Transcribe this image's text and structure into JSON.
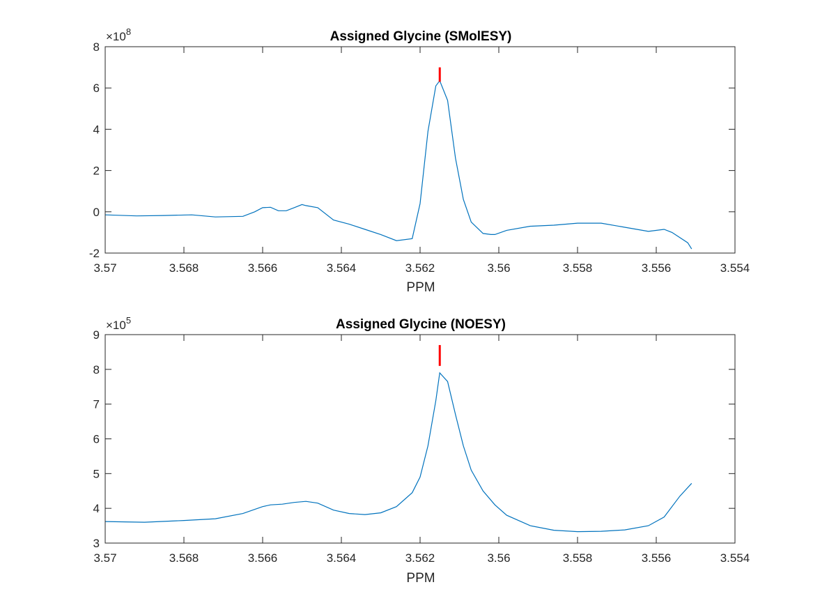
{
  "chart_data": [
    {
      "type": "line",
      "title": "Assigned Glycine (SMolESY)",
      "xlabel": "PPM",
      "ylabel": "",
      "x_reversed": true,
      "xlim": [
        3.554,
        3.57
      ],
      "ylim": [
        -2,
        8
      ],
      "x_ticks": [
        "3.57",
        "3.568",
        "3.566",
        "3.564",
        "3.562",
        "3.56",
        "3.558",
        "3.556",
        "3.554"
      ],
      "x_tick_values": [
        3.57,
        3.568,
        3.566,
        3.564,
        3.562,
        3.56,
        3.558,
        3.556,
        3.554
      ],
      "y_ticks": [
        "-2",
        "0",
        "2",
        "4",
        "6",
        "8"
      ],
      "y_tick_values": [
        -2,
        0,
        2,
        4,
        6,
        8
      ],
      "y_exponent_base": "×10",
      "y_exponent": "8",
      "series_color": "#0072bd",
      "marker_color": "#ff0000",
      "marker": {
        "x": 3.5615,
        "y_from": 6.3,
        "y_to": 7.0
      },
      "series": [
        {
          "x": [
            3.57,
            3.5692,
            3.5685,
            3.5678,
            3.5672,
            3.5665,
            3.5662,
            3.566,
            3.5658,
            3.5656,
            3.5654,
            3.5652,
            3.565,
            3.5649,
            3.5646,
            3.5642,
            3.5638,
            3.5634,
            3.563,
            3.5626,
            3.5622,
            3.562,
            3.5618,
            3.5616,
            3.5615,
            3.5613,
            3.5611,
            3.5609,
            3.5607,
            3.5604,
            3.5602,
            3.5601,
            3.5598,
            3.5592,
            3.5586,
            3.558,
            3.5574,
            3.5568,
            3.5562,
            3.5558,
            3.5556,
            3.5552,
            3.5551
          ],
          "y": [
            -0.15,
            -0.2,
            -0.18,
            -0.15,
            -0.25,
            -0.22,
            0.0,
            0.2,
            0.22,
            0.05,
            0.05,
            0.2,
            0.35,
            0.3,
            0.2,
            -0.4,
            -0.6,
            -0.85,
            -1.1,
            -1.4,
            -1.3,
            0.4,
            3.9,
            6.1,
            6.35,
            5.4,
            2.6,
            0.6,
            -0.5,
            -1.05,
            -1.1,
            -1.1,
            -0.9,
            -0.7,
            -0.65,
            -0.55,
            -0.55,
            -0.75,
            -0.95,
            -0.85,
            -1.0,
            -1.5,
            -1.8
          ]
        }
      ]
    },
    {
      "type": "line",
      "title": "Assigned Glycine (NOESY)",
      "xlabel": "PPM",
      "ylabel": "",
      "x_reversed": true,
      "xlim": [
        3.554,
        3.57
      ],
      "ylim": [
        3,
        9
      ],
      "x_ticks": [
        "3.57",
        "3.568",
        "3.566",
        "3.564",
        "3.562",
        "3.56",
        "3.558",
        "3.556",
        "3.554"
      ],
      "x_tick_values": [
        3.57,
        3.568,
        3.566,
        3.564,
        3.562,
        3.56,
        3.558,
        3.556,
        3.554
      ],
      "y_ticks": [
        "3",
        "4",
        "5",
        "6",
        "7",
        "8",
        "9"
      ],
      "y_tick_values": [
        3,
        4,
        5,
        6,
        7,
        8,
        9
      ],
      "y_exponent_base": "×10",
      "y_exponent": "5",
      "series_color": "#0072bd",
      "marker_color": "#ff0000",
      "marker": {
        "x": 3.5615,
        "y_from": 8.1,
        "y_to": 8.7
      },
      "series": [
        {
          "x": [
            3.57,
            3.569,
            3.568,
            3.5672,
            3.5665,
            3.566,
            3.5658,
            3.5655,
            3.5652,
            3.5649,
            3.5646,
            3.5642,
            3.5638,
            3.5634,
            3.563,
            3.5626,
            3.5622,
            3.562,
            3.5618,
            3.5616,
            3.5615,
            3.5613,
            3.5611,
            3.5609,
            3.5607,
            3.5604,
            3.5601,
            3.5598,
            3.5592,
            3.5586,
            3.558,
            3.5574,
            3.5568,
            3.5562,
            3.5558,
            3.5554,
            3.5551
          ],
          "y": [
            3.62,
            3.6,
            3.65,
            3.7,
            3.85,
            4.05,
            4.1,
            4.12,
            4.17,
            4.2,
            4.15,
            3.95,
            3.85,
            3.82,
            3.87,
            4.05,
            4.45,
            4.9,
            5.8,
            7.1,
            7.9,
            7.65,
            6.7,
            5.8,
            5.1,
            4.5,
            4.1,
            3.8,
            3.5,
            3.37,
            3.33,
            3.34,
            3.38,
            3.5,
            3.75,
            4.35,
            4.72
          ]
        }
      ]
    }
  ]
}
